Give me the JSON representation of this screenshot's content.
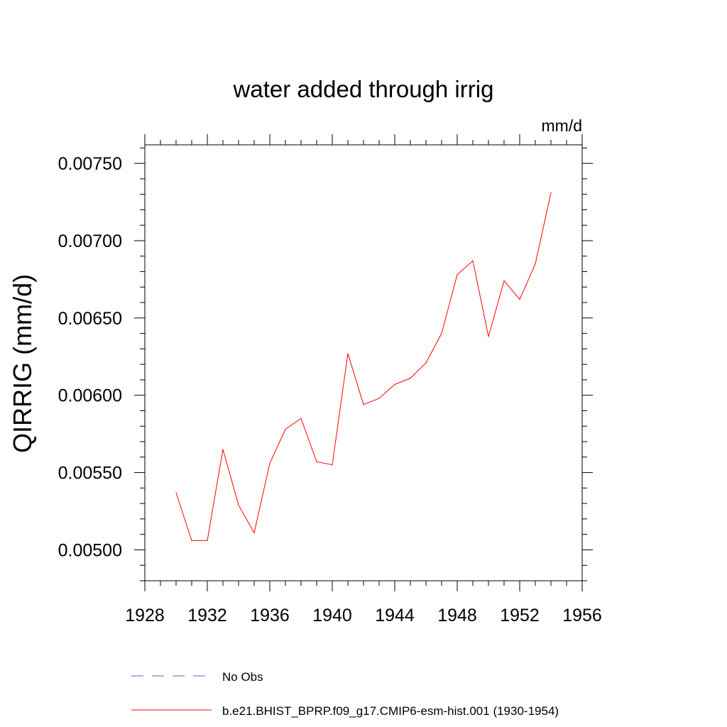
{
  "chart_data": {
    "type": "line",
    "title": "water added through irrig",
    "units": "mm/d",
    "xlabel": "",
    "ylabel": "QIRRIG  (mm/d)",
    "xlim": [
      1928,
      1956
    ],
    "ylim": [
      0.0048,
      0.00762
    ],
    "x_ticks": [
      "1928",
      "1932",
      "1936",
      "1940",
      "1944",
      "1948",
      "1952",
      "1956"
    ],
    "y_ticks": [
      "0.00500",
      "0.00550",
      "0.00600",
      "0.00650",
      "0.00700",
      "0.00750"
    ],
    "grid": false,
    "series": [
      {
        "name": "b.e21.BHIST_BPRP.f09_g17.CMIP6-esm-hist.001 (1930-1954)",
        "color": "#ff0000",
        "style": "solid",
        "x": [
          1930,
          1931,
          1932,
          1933,
          1934,
          1935,
          1936,
          1937,
          1938,
          1939,
          1940,
          1941,
          1942,
          1943,
          1944,
          1945,
          1946,
          1947,
          1948,
          1949,
          1950,
          1951,
          1952,
          1953,
          1954
        ],
        "values": [
          0.00537,
          0.00506,
          0.00506,
          0.00565,
          0.00529,
          0.00511,
          0.00556,
          0.00578,
          0.00585,
          0.00557,
          0.00555,
          0.00627,
          0.00594,
          0.00598,
          0.00607,
          0.00611,
          0.00621,
          0.0064,
          0.00678,
          0.00687,
          0.00638,
          0.00674,
          0.00662,
          0.00685,
          0.00731
        ]
      }
    ],
    "legend": [
      {
        "label": "No Obs",
        "color": "#6a5acd",
        "style": "dashed"
      },
      {
        "label": "b.e21.BHIST_BPRP.f09_g17.CMIP6-esm-hist.001 (1930-1954)",
        "color": "#ff0000",
        "style": "solid"
      }
    ],
    "legend_position": "bottom"
  }
}
